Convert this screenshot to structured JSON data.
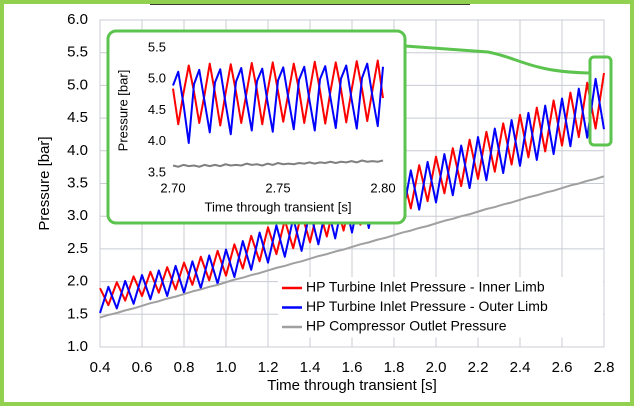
{
  "chart_data": [
    {
      "type": "line",
      "xlabel": "Time through transient [s]",
      "ylabel": "Pressure [bar]",
      "xlim": [
        0.4,
        2.8
      ],
      "ylim": [
        1,
        6
      ],
      "xticks": [
        0.4,
        0.6,
        0.8,
        {
          "value": 1,
          "label": "1.0"
        },
        1.2,
        1.4,
        1.6,
        1.8,
        {
          "value": 2,
          "label": "2.0"
        },
        2.2,
        2.4,
        2.6,
        2.8
      ],
      "yticks": [
        {
          "value": 1,
          "label": "1.0"
        },
        1.5,
        {
          "value": 2,
          "label": "2.0"
        },
        2.5,
        {
          "value": 3,
          "label": "3.0"
        },
        3.5,
        {
          "value": 4,
          "label": "4.0"
        },
        4.5,
        {
          "value": 5,
          "label": "5.0"
        },
        5.5,
        {
          "value": 6,
          "label": "6.0"
        }
      ],
      "grid": true,
      "legend": "lower right",
      "x": [
        0.4,
        0.44,
        0.48,
        0.52,
        0.56,
        0.6,
        0.64,
        0.68,
        0.72,
        0.76,
        0.8,
        0.84,
        0.88,
        0.92,
        0.96,
        1.0,
        1.04,
        1.08,
        1.12,
        1.16,
        1.2,
        1.24,
        1.28,
        1.32,
        1.36,
        1.4,
        1.44,
        1.48,
        1.52,
        1.56,
        1.6,
        1.64,
        1.68,
        1.72,
        1.76,
        1.8,
        1.84,
        1.88,
        1.92,
        1.96,
        2.0,
        2.04,
        2.08,
        2.12,
        2.16,
        2.2,
        2.24,
        2.28,
        2.32,
        2.36,
        2.4,
        2.44,
        2.48,
        2.52,
        2.56,
        2.6,
        2.64,
        2.68,
        2.72,
        2.76,
        2.8
      ],
      "series": [
        {
          "name": "HP Turbine Inlet Pressure - Inner Limb",
          "color": "#ff0000",
          "values": [
            1.9,
            1.64,
            1.99,
            1.71,
            2.08,
            1.78,
            2.15,
            1.83,
            2.22,
            1.88,
            2.29,
            1.95,
            2.38,
            2.02,
            2.47,
            2.09,
            2.57,
            2.2,
            2.7,
            2.31,
            2.83,
            2.42,
            2.94,
            2.51,
            3.05,
            2.6,
            3.15,
            2.69,
            3.26,
            2.78,
            3.37,
            2.87,
            3.46,
            2.94,
            3.55,
            3.01,
            3.65,
            3.12,
            3.78,
            3.23,
            3.91,
            3.35,
            4.04,
            3.46,
            4.17,
            3.57,
            4.29,
            3.68,
            4.42,
            3.79,
            4.55,
            3.9,
            4.66,
            3.99,
            4.77,
            4.08,
            4.89,
            4.21,
            5.04,
            4.34,
            5.19
          ]
        },
        {
          "name": "HP Turbine Inlet Pressure - Outer Limb",
          "color": "#0000ff",
          "values": [
            1.52,
            1.92,
            1.59,
            2.01,
            1.66,
            2.1,
            1.73,
            2.17,
            1.78,
            2.24,
            1.83,
            2.31,
            1.9,
            2.4,
            1.97,
            2.49,
            2.07,
            2.62,
            2.18,
            2.75,
            2.29,
            2.86,
            2.38,
            2.97,
            2.47,
            3.08,
            2.57,
            3.19,
            2.66,
            3.3,
            2.75,
            3.39,
            2.82,
            3.48,
            2.89,
            3.57,
            2.99,
            3.7,
            3.1,
            3.83,
            3.21,
            3.95,
            3.32,
            4.08,
            3.43,
            4.21,
            3.55,
            4.34,
            3.66,
            4.47,
            3.77,
            4.58,
            3.86,
            4.69,
            3.95,
            4.8,
            4.07,
            4.95,
            4.2,
            5.1,
            4.33
          ]
        },
        {
          "name": "HP Compressor Outlet Pressure",
          "color": "#a0a0a0",
          "values": [
            1.45,
            1.49,
            1.52,
            1.56,
            1.59,
            1.63,
            1.67,
            1.7,
            1.74,
            1.77,
            1.81,
            1.85,
            1.88,
            1.92,
            1.95,
            1.99,
            2.03,
            2.06,
            2.1,
            2.13,
            2.17,
            2.21,
            2.24,
            2.28,
            2.31,
            2.35,
            2.39,
            2.42,
            2.46,
            2.49,
            2.53,
            2.57,
            2.6,
            2.64,
            2.67,
            2.71,
            2.75,
            2.78,
            2.82,
            2.85,
            2.89,
            2.93,
            2.96,
            3.0,
            3.03,
            3.07,
            3.11,
            3.14,
            3.18,
            3.21,
            3.25,
            3.29,
            3.32,
            3.36,
            3.39,
            3.43,
            3.47,
            3.5,
            3.54,
            3.57,
            3.61
          ]
        }
      ]
    },
    {
      "type": "line",
      "xlabel": "Time through transient [s]",
      "ylabel": "Pressure [bar]",
      "xlim": [
        2.7,
        2.8
      ],
      "ylim": [
        3.5,
        5.5
      ],
      "xticks": [
        {
          "value": 2.7,
          "label": "2.70"
        },
        2.75,
        {
          "value": 2.8,
          "label": "2.80"
        }
      ],
      "yticks": [
        3.5,
        {
          "value": 4,
          "label": "4.0"
        },
        4.5,
        {
          "value": 5,
          "label": "5.0"
        },
        5.5
      ],
      "grid": false,
      "x": [
        2.7,
        2.7025,
        2.705,
        2.7075,
        2.71,
        2.7125,
        2.715,
        2.7175,
        2.72,
        2.7225,
        2.725,
        2.7275,
        2.73,
        2.7325,
        2.735,
        2.7375,
        2.74,
        2.7425,
        2.745,
        2.7475,
        2.75,
        2.7525,
        2.755,
        2.7575,
        2.76,
        2.7625,
        2.765,
        2.7675,
        2.77,
        2.7725,
        2.775,
        2.7775,
        2.78,
        2.7825,
        2.785,
        2.7875,
        2.79,
        2.7925,
        2.795,
        2.7975,
        2.8
      ],
      "series": [
        {
          "color": "#ff0000",
          "values": [
            4.85,
            4.28,
            4.78,
            5.22,
            4.8,
            4.3,
            4.75,
            5.25,
            4.78,
            4.26,
            4.77,
            5.24,
            4.8,
            4.3,
            4.78,
            5.26,
            4.82,
            4.28,
            4.8,
            5.27,
            4.81,
            4.32,
            4.79,
            5.25,
            4.83,
            4.3,
            4.8,
            5.28,
            4.82,
            4.29,
            4.81,
            5.27,
            4.84,
            4.31,
            4.82,
            5.29,
            4.85,
            4.33,
            4.83,
            5.3,
            4.7
          ]
        },
        {
          "color": "#0000ff",
          "values": [
            4.9,
            5.12,
            4.6,
            3.98,
            4.92,
            5.15,
            4.65,
            4.15,
            4.95,
            5.16,
            4.62,
            4.12,
            4.96,
            5.18,
            4.66,
            4.18,
            4.97,
            5.17,
            4.64,
            4.16,
            4.98,
            5.19,
            4.68,
            4.2,
            4.99,
            5.2,
            4.66,
            4.18,
            5.0,
            5.21,
            4.7,
            4.22,
            5.01,
            5.22,
            4.69,
            4.21,
            5.02,
            5.25,
            4.72,
            4.25,
            5.2
          ]
        },
        {
          "color": "#808080",
          "values": [
            3.62,
            3.6,
            3.63,
            3.61,
            3.62,
            3.6,
            3.63,
            3.61,
            3.63,
            3.61,
            3.64,
            3.62,
            3.63,
            3.62,
            3.65,
            3.63,
            3.64,
            3.62,
            3.65,
            3.63,
            3.66,
            3.64,
            3.65,
            3.64,
            3.66,
            3.65,
            3.67,
            3.65,
            3.67,
            3.66,
            3.68,
            3.66,
            3.68,
            3.67,
            3.69,
            3.67,
            3.7,
            3.68,
            3.69,
            3.68,
            3.7
          ]
        }
      ]
    }
  ]
}
